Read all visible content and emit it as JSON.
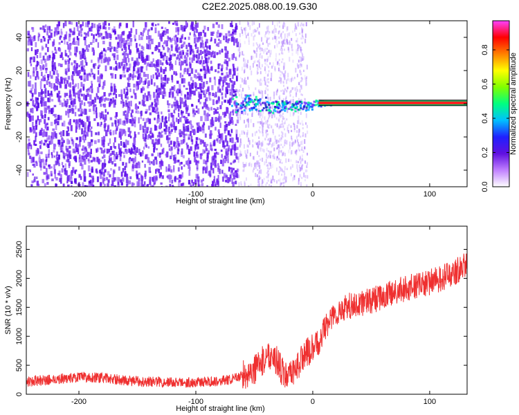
{
  "title": "C2E2.2025.088.00.19.G30",
  "colors": {
    "series": "#ef3030",
    "frame": "#000000",
    "background": "#ffffff"
  },
  "chart_data": [
    {
      "type": "heatmap",
      "xlabel": "Height of straight line (km)",
      "ylabel": "Frequency (Hz)",
      "xlim": [
        -245,
        132
      ],
      "ylim": [
        -50,
        50
      ],
      "xticks": [
        -200,
        -100,
        0,
        100
      ],
      "xtick_labels": [
        "-200",
        "-100",
        "0",
        "100"
      ],
      "yticks": [
        -40,
        -20,
        0,
        20,
        40
      ],
      "ytick_labels": [
        "-40",
        "-20",
        "0",
        "20",
        "40"
      ],
      "grid": false,
      "colorbar": {
        "label": "Normalized spectral amplitude",
        "range": [
          0,
          0.97
        ],
        "ticks": [
          0.0,
          0.2,
          0.4,
          0.6,
          0.8
        ],
        "tick_labels": [
          "0.0",
          "0.2",
          "0.4",
          "0.6",
          "0.8"
        ],
        "colormap": [
          "#ffffff",
          "#c080ff",
          "#6010e0",
          "#2020ff",
          "#00c0ff",
          "#00ff80",
          "#80ff00",
          "#ffff00",
          "#ff8000",
          "#ff0000",
          "#ff40ff"
        ]
      },
      "features": {
        "noise_region_x": [
          -245,
          -65
        ],
        "signal_line_start_x": -70,
        "signal_line_frequency": 0.5
      }
    },
    {
      "type": "line",
      "xlabel": "Height of straight line (km)",
      "ylabel": "SNR (10 * v/v)",
      "xlim": [
        -245,
        132
      ],
      "ylim": [
        0,
        2900
      ],
      "xticks": [
        -200,
        -100,
        0,
        100
      ],
      "xtick_labels": [
        "-200",
        "-100",
        "0",
        "100"
      ],
      "yticks": [
        0,
        500,
        1000,
        1500,
        2000,
        2500
      ],
      "ytick_labels": [
        "0",
        "500",
        "1000",
        "1500",
        "2000",
        "2500"
      ],
      "grid": false,
      "series": [
        {
          "color": "#ef3030",
          "x": [
            -245,
            -230,
            -215,
            -200,
            -185,
            -170,
            -155,
            -140,
            -125,
            -110,
            -95,
            -80,
            -70,
            -60,
            -50,
            -45,
            -40,
            -35,
            -30,
            -25,
            -20,
            -15,
            -10,
            -5,
            0,
            5,
            10,
            20,
            30,
            40,
            50,
            60,
            70,
            80,
            90,
            100,
            110,
            120,
            130
          ],
          "y": [
            220,
            240,
            270,
            290,
            290,
            260,
            230,
            220,
            210,
            200,
            210,
            230,
            250,
            330,
            420,
            520,
            650,
            700,
            550,
            350,
            280,
            420,
            600,
            720,
            780,
            900,
            1150,
            1400,
            1520,
            1560,
            1620,
            1680,
            1760,
            1830,
            1870,
            1930,
            2000,
            2080,
            2250
          ]
        }
      ]
    }
  ]
}
